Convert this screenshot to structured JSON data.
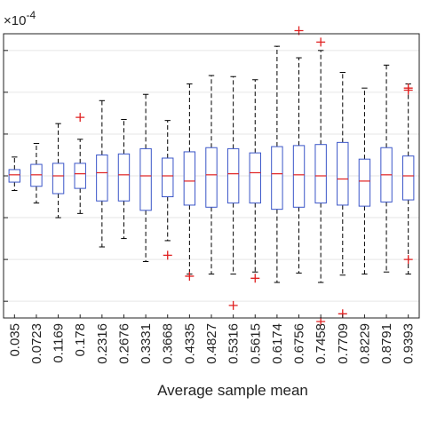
{
  "chart_data": {
    "type": "boxplot",
    "xlabel": "Average sample mean",
    "y_exponent_label": "×10",
    "y_exponent_power": "-4",
    "y_scale": 0.0001,
    "ylim": [
      -6.8,
      6.8
    ],
    "y_ticks": [
      -6,
      -4,
      -2,
      0,
      2,
      4,
      6
    ],
    "grid": true,
    "colors": {
      "box": "#3a55c8",
      "median": "#e02020",
      "whisker": "#000000",
      "outlier": "#e02020",
      "grid": "#e6e6e6",
      "axis": "#222222"
    },
    "categories": [
      "0.035",
      "0.0723",
      "0.1169",
      "0.178",
      "0.2316",
      "0.2676",
      "0.3331",
      "0.3668",
      "0.4335",
      "0.4827",
      "0.5316",
      "0.5615",
      "0.6174",
      "0.6756",
      "0.7458",
      "0.7709",
      "0.8229",
      "0.8791",
      "0.9393"
    ],
    "boxes": [
      {
        "q1": -0.3,
        "median": 0.05,
        "q3": 0.3,
        "low": -0.7,
        "high": 0.9,
        "outliers": []
      },
      {
        "q1": -0.5,
        "median": 0.05,
        "q3": 0.55,
        "low": -1.3,
        "high": 1.55,
        "outliers": []
      },
      {
        "q1": -0.85,
        "median": 0.0,
        "q3": 0.6,
        "low": -2.0,
        "high": 2.5,
        "outliers": []
      },
      {
        "q1": -0.6,
        "median": 0.1,
        "q3": 0.6,
        "low": -1.8,
        "high": 1.75,
        "outliers": [
          2.8
        ]
      },
      {
        "q1": -1.2,
        "median": 0.15,
        "q3": 1.0,
        "low": -3.4,
        "high": 3.6,
        "outliers": []
      },
      {
        "q1": -1.2,
        "median": 0.05,
        "q3": 1.05,
        "low": -3.0,
        "high": 2.7,
        "outliers": []
      },
      {
        "q1": -1.65,
        "median": 0.0,
        "q3": 1.3,
        "low": -4.1,
        "high": 3.9,
        "outliers": []
      },
      {
        "q1": -1.0,
        "median": 0.0,
        "q3": 0.85,
        "low": -3.1,
        "high": 2.65,
        "outliers": [
          -3.8
        ]
      },
      {
        "q1": -1.4,
        "median": -0.25,
        "q3": 1.15,
        "low": -4.7,
        "high": 4.4,
        "outliers": [
          -4.8
        ]
      },
      {
        "q1": -1.5,
        "median": 0.05,
        "q3": 1.35,
        "low": -4.7,
        "high": 4.8,
        "outliers": []
      },
      {
        "q1": -1.3,
        "median": 0.1,
        "q3": 1.3,
        "low": -4.7,
        "high": 4.75,
        "outliers": [
          -6.2
        ]
      },
      {
        "q1": -1.3,
        "median": 0.15,
        "q3": 1.1,
        "low": -4.6,
        "high": 4.6,
        "outliers": [
          -4.9
        ]
      },
      {
        "q1": -1.6,
        "median": 0.1,
        "q3": 1.4,
        "low": -5.1,
        "high": 6.2,
        "outliers": []
      },
      {
        "q1": -1.5,
        "median": 0.05,
        "q3": 1.45,
        "low": -4.65,
        "high": 5.65,
        "outliers": [
          6.95
        ]
      },
      {
        "q1": -1.3,
        "median": 0.0,
        "q3": 1.5,
        "low": -5.1,
        "high": 6.0,
        "outliers": [
          -7.4,
          6.4
        ]
      },
      {
        "q1": -1.4,
        "median": -0.15,
        "q3": 1.6,
        "low": -4.75,
        "high": 4.95,
        "outliers": [
          -6.6
        ]
      },
      {
        "q1": -1.45,
        "median": -0.25,
        "q3": 0.8,
        "low": -4.7,
        "high": 4.2,
        "outliers": []
      },
      {
        "q1": -1.25,
        "median": 0.05,
        "q3": 1.35,
        "low": -4.6,
        "high": 5.3,
        "outliers": []
      },
      {
        "q1": -1.15,
        "median": 0.0,
        "q3": 0.95,
        "low": -4.7,
        "high": 4.4,
        "outliers": [
          4.2,
          4.1,
          -4.0
        ]
      }
    ]
  }
}
